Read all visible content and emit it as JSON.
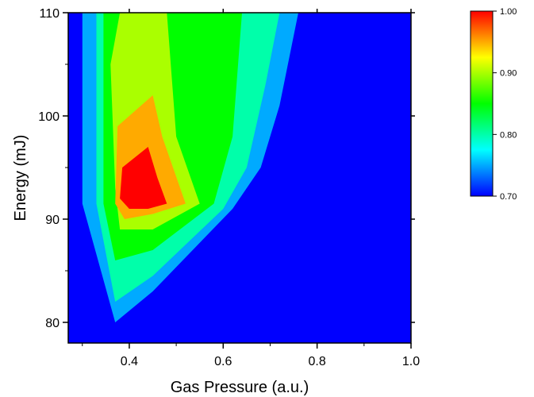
{
  "chart_data": {
    "type": "heatmap",
    "title": "",
    "xlabel": "Gas Pressure (a.u.)",
    "ylabel": "Energy (mJ)",
    "xlim": [
      0.27,
      1.0
    ],
    "ylim": [
      78,
      110
    ],
    "x_ticks": [
      "0.4",
      "0.6",
      "0.8",
      "1.0"
    ],
    "x_tick_values": [
      0.4,
      0.6,
      0.8,
      1.0
    ],
    "y_ticks": [
      "80",
      "90",
      "100",
      "110"
    ],
    "y_tick_values": [
      80,
      90,
      100,
      110
    ],
    "colorbar": {
      "min": 0.7,
      "max": 1.0,
      "ticks": [
        "0.70",
        "0.80",
        "0.90",
        "1.00"
      ],
      "tick_values": [
        0.7,
        0.8,
        0.9,
        1.0
      ],
      "colors": [
        "#0000ff",
        "#00ffff",
        "#00ff00",
        "#ffff00",
        "#ff0000"
      ]
    },
    "contour_regions": [
      {
        "level": 0.75,
        "points": [
          [
            0.3,
            110
          ],
          [
            0.3,
            91.5
          ],
          [
            0.37,
            80
          ],
          [
            0.45,
            83
          ],
          [
            0.62,
            91
          ],
          [
            0.68,
            95
          ],
          [
            0.72,
            101
          ],
          [
            0.76,
            110
          ]
        ]
      },
      {
        "level": 0.8,
        "points": [
          [
            0.33,
            110
          ],
          [
            0.33,
            91.5
          ],
          [
            0.37,
            82
          ],
          [
            0.45,
            84.5
          ],
          [
            0.6,
            91
          ],
          [
            0.65,
            95
          ],
          [
            0.69,
            103
          ],
          [
            0.72,
            110
          ]
        ]
      },
      {
        "level": 0.85,
        "points": [
          [
            0.345,
            110
          ],
          [
            0.345,
            91.5
          ],
          [
            0.37,
            86
          ],
          [
            0.45,
            87
          ],
          [
            0.58,
            91.5
          ],
          [
            0.62,
            98
          ],
          [
            0.64,
            110
          ]
        ]
      },
      {
        "level": 0.9,
        "points": [
          [
            0.36,
            105
          ],
          [
            0.37,
            93
          ],
          [
            0.38,
            89
          ],
          [
            0.45,
            89
          ],
          [
            0.55,
            91.5
          ],
          [
            0.5,
            98
          ],
          [
            0.48,
            110
          ],
          [
            0.38,
            110
          ]
        ]
      },
      {
        "level": 0.95,
        "points": [
          [
            0.375,
            99
          ],
          [
            0.37,
            91.5
          ],
          [
            0.39,
            90
          ],
          [
            0.45,
            90.5
          ],
          [
            0.52,
            91.5
          ],
          [
            0.47,
            98
          ],
          [
            0.45,
            102
          ]
        ]
      },
      {
        "level": 1.0,
        "points": [
          [
            0.385,
            95
          ],
          [
            0.38,
            92
          ],
          [
            0.4,
            91
          ],
          [
            0.44,
            91
          ],
          [
            0.48,
            91.5
          ],
          [
            0.46,
            94
          ],
          [
            0.44,
            97
          ]
        ]
      }
    ]
  }
}
